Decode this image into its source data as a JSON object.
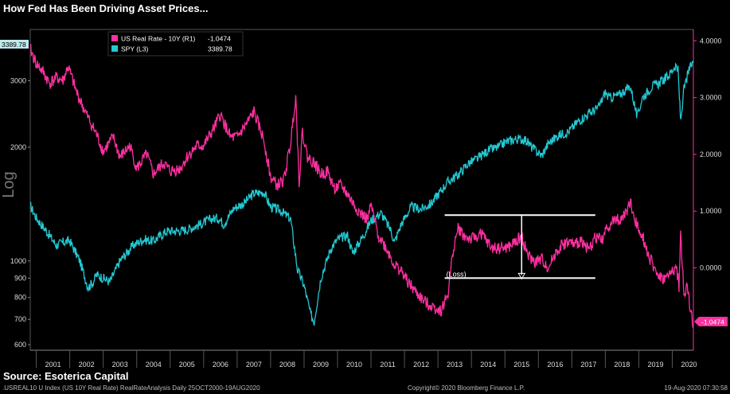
{
  "title": "How Fed Has Been Driving Asset Prices...",
  "source": "Source: Esoterica Capital",
  "footer": {
    "left": ".USREAL10 U Index (US 10Y Real Rate) RealRateAnalysis  Daily 25OCT2000-19AUG2020",
    "middle": "Copyright© 2020 Bloomberg Finance L.P.",
    "right": "19-Aug-2020 07:30:58"
  },
  "colors": {
    "real_rate": "#ff2fa0",
    "spy": "#23c8d2",
    "annotation": "#ffffff",
    "background": "#000000"
  },
  "chart_data": {
    "type": "line",
    "title": "How Fed Has Been Driving Asset Prices...",
    "x_label": "",
    "left_axis_label": "Log",
    "left_axis_scale": "log",
    "left_ylim": [
      580,
      4100
    ],
    "left_ticks": [
      600,
      700,
      800,
      900,
      1000,
      2000,
      3000
    ],
    "right_ylim": [
      -1.45,
      4.2
    ],
    "right_ticks": [
      "4.0000",
      "3.0000",
      "2.0000",
      "1.0000",
      "0.0000"
    ],
    "x_range": [
      2000.82,
      2020.63
    ],
    "x_ticks": [
      "2001",
      "2002",
      "2003",
      "2004",
      "2005",
      "2006",
      "2007",
      "2008",
      "2009",
      "2010",
      "2011",
      "2012",
      "2013",
      "2014",
      "2015",
      "2016",
      "2017",
      "2018",
      "2019",
      "2020"
    ],
    "legend": [
      {
        "label": "US Real Rate - 10Y (R1)",
        "value": "-1.0474"
      },
      {
        "label": "SPY (L3)",
        "value": "3389.78"
      }
    ],
    "last_value_tags": {
      "spy": "3389.78",
      "real_rate": "-1.0474"
    },
    "annotation_label": "(Loss)",
    "annotation_band": {
      "x_start": 2013.2,
      "x_end": 2017.7,
      "upper": 0.93,
      "lower": -0.18,
      "arrow_x": 2015.5
    },
    "series": [
      {
        "name": "US Real Rate - 10Y",
        "axis": "right",
        "x": [
          2000.82,
          2001.0,
          2001.2,
          2001.4,
          2001.6,
          2001.8,
          2001.95,
          2002.2,
          2002.5,
          2002.8,
          2003.0,
          2003.3,
          2003.5,
          2003.8,
          2004.0,
          2004.3,
          2004.5,
          2004.8,
          2005.0,
          2005.3,
          2005.5,
          2005.8,
          2006.0,
          2006.3,
          2006.5,
          2006.8,
          2007.0,
          2007.3,
          2007.5,
          2007.8,
          2008.0,
          2008.2,
          2008.4,
          2008.6,
          2008.75,
          2008.85,
          2008.95,
          2009.1,
          2009.3,
          2009.5,
          2009.7,
          2009.9,
          2010.1,
          2010.3,
          2010.5,
          2010.7,
          2010.9,
          2011.0,
          2011.2,
          2011.5,
          2011.7,
          2011.9,
          2012.1,
          2012.3,
          2012.6,
          2012.9,
          2013.1,
          2013.3,
          2013.45,
          2013.6,
          2013.8,
          2014.0,
          2014.3,
          2014.6,
          2014.9,
          2015.1,
          2015.3,
          2015.5,
          2015.7,
          2015.9,
          2016.1,
          2016.3,
          2016.5,
          2016.7,
          2016.9,
          2017.1,
          2017.3,
          2017.5,
          2017.7,
          2017.9,
          2018.1,
          2018.3,
          2018.5,
          2018.75,
          2018.9,
          2019.1,
          2019.3,
          2019.5,
          2019.7,
          2019.9,
          2020.0,
          2020.1,
          2020.17,
          2020.2,
          2020.25,
          2020.35,
          2020.45,
          2020.55,
          2020.63
        ],
        "y": [
          3.85,
          3.6,
          3.45,
          3.25,
          3.35,
          3.3,
          3.55,
          3.1,
          2.7,
          2.35,
          2.05,
          2.3,
          1.95,
          2.15,
          1.75,
          2.0,
          1.65,
          1.85,
          1.7,
          1.75,
          1.95,
          2.15,
          2.15,
          2.45,
          2.7,
          2.3,
          2.3,
          2.55,
          2.75,
          2.25,
          1.6,
          1.45,
          1.55,
          2.2,
          3.05,
          1.5,
          2.4,
          1.95,
          1.85,
          1.65,
          1.7,
          1.4,
          1.45,
          1.3,
          1.1,
          0.95,
          0.85,
          1.1,
          0.6,
          0.3,
          0.05,
          -0.05,
          -0.25,
          -0.4,
          -0.6,
          -0.7,
          -0.75,
          -0.45,
          0.3,
          0.7,
          0.55,
          0.5,
          0.6,
          0.35,
          0.35,
          0.35,
          0.45,
          0.55,
          0.2,
          0.1,
          0.15,
          0.0,
          0.25,
          0.4,
          0.45,
          0.4,
          0.5,
          0.3,
          0.55,
          0.5,
          0.75,
          0.85,
          0.85,
          1.15,
          0.8,
          0.6,
          0.2,
          -0.05,
          -0.2,
          -0.15,
          -0.05,
          0.0,
          -0.15,
          -0.35,
          0.6,
          -0.5,
          -0.3,
          -0.8,
          -1.05
        ]
      },
      {
        "name": "SPY",
        "axis": "left",
        "x": [
          2000.82,
          2001.0,
          2001.3,
          2001.6,
          2001.8,
          2002.0,
          2002.3,
          2002.55,
          2002.7,
          2002.8,
          2003.0,
          2003.2,
          2003.5,
          2003.9,
          2004.2,
          2004.5,
          2004.9,
          2005.2,
          2005.5,
          2005.9,
          2006.2,
          2006.45,
          2006.6,
          2006.9,
          2007.2,
          2007.5,
          2007.8,
          2008.0,
          2008.3,
          2008.6,
          2008.8,
          2009.0,
          2009.2,
          2009.3,
          2009.5,
          2009.8,
          2010.0,
          2010.3,
          2010.45,
          2010.6,
          2010.8,
          2011.0,
          2011.3,
          2011.6,
          2011.7,
          2011.9,
          2012.2,
          2012.5,
          2012.8,
          2013.0,
          2013.3,
          2013.6,
          2013.9,
          2014.2,
          2014.5,
          2014.8,
          2015.0,
          2015.3,
          2015.6,
          2015.8,
          2016.1,
          2016.3,
          2016.6,
          2016.9,
          2017.2,
          2017.5,
          2017.8,
          2018.0,
          2018.1,
          2018.4,
          2018.75,
          2018.95,
          2019.1,
          2019.4,
          2019.6,
          2019.9,
          2020.1,
          2020.17,
          2020.2,
          2020.25,
          2020.35,
          2020.5,
          2020.63
        ],
        "y": [
          1400,
          1300,
          1200,
          1100,
          1120,
          1130,
          1000,
          850,
          880,
          920,
          900,
          880,
          1000,
          1100,
          1140,
          1130,
          1200,
          1200,
          1210,
          1250,
          1290,
          1300,
          1250,
          1380,
          1420,
          1510,
          1520,
          1390,
          1360,
          1290,
          950,
          860,
          720,
          690,
          900,
          1080,
          1140,
          1170,
          1050,
          1100,
          1180,
          1280,
          1340,
          1200,
          1120,
          1250,
          1390,
          1370,
          1420,
          1500,
          1620,
          1690,
          1810,
          1870,
          1960,
          2000,
          2060,
          2100,
          2100,
          2000,
          1900,
          2050,
          2150,
          2200,
          2350,
          2450,
          2550,
          2800,
          2700,
          2750,
          2900,
          2400,
          2700,
          2900,
          2950,
          3100,
          3300,
          3200,
          2850,
          2350,
          2850,
          3200,
          3390
        ]
      }
    ]
  }
}
